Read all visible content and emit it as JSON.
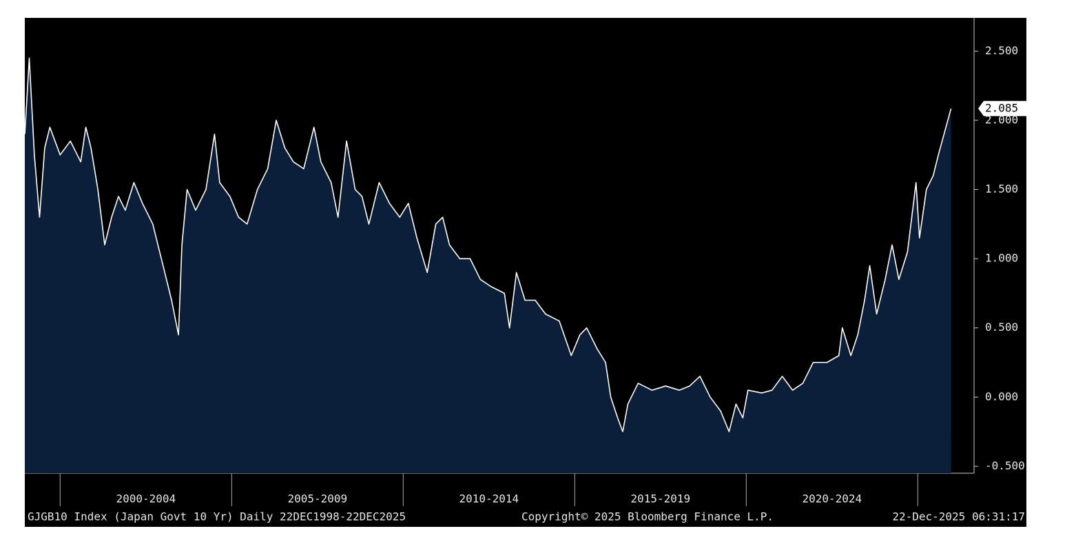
{
  "chart_data": {
    "type": "area",
    "x": [
      1998.97,
      1999.1,
      1999.25,
      1999.4,
      1999.55,
      1999.7,
      2000.0,
      2000.3,
      2000.6,
      2000.75,
      2000.9,
      2001.1,
      2001.3,
      2001.5,
      2001.7,
      2001.9,
      2002.15,
      2002.4,
      2002.7,
      2003.0,
      2003.25,
      2003.45,
      2003.55,
      2003.7,
      2003.95,
      2004.25,
      2004.5,
      2004.65,
      2004.95,
      2005.2,
      2005.45,
      2005.75,
      2006.05,
      2006.3,
      2006.55,
      2006.8,
      2007.1,
      2007.4,
      2007.6,
      2007.9,
      2008.1,
      2008.35,
      2008.6,
      2008.8,
      2009.0,
      2009.3,
      2009.6,
      2009.9,
      2010.15,
      2010.4,
      2010.7,
      2010.95,
      2011.15,
      2011.35,
      2011.65,
      2011.95,
      2012.25,
      2012.55,
      2012.95,
      2013.1,
      2013.3,
      2013.55,
      2013.85,
      2014.15,
      2014.55,
      2014.9,
      2015.15,
      2015.35,
      2015.65,
      2015.9,
      2016.05,
      2016.25,
      2016.4,
      2016.55,
      2016.85,
      2017.25,
      2017.65,
      2018.05,
      2018.35,
      2018.65,
      2018.95,
      2019.25,
      2019.5,
      2019.7,
      2019.9,
      2020.05,
      2020.45,
      2020.75,
      2021.05,
      2021.35,
      2021.65,
      2021.95,
      2022.35,
      2022.7,
      2022.8,
      2023.05,
      2023.25,
      2023.45,
      2023.6,
      2023.8,
      2024.05,
      2024.25,
      2024.45,
      2024.7,
      2024.95,
      2025.05,
      2025.25,
      2025.45,
      2025.6,
      2025.97
    ],
    "values": [
      1.9,
      2.45,
      1.75,
      1.3,
      1.8,
      1.95,
      1.75,
      1.85,
      1.7,
      1.95,
      1.8,
      1.5,
      1.1,
      1.3,
      1.45,
      1.35,
      1.55,
      1.4,
      1.25,
      0.95,
      0.7,
      0.45,
      1.1,
      1.5,
      1.35,
      1.5,
      1.9,
      1.55,
      1.45,
      1.3,
      1.25,
      1.5,
      1.65,
      2.0,
      1.8,
      1.7,
      1.65,
      1.95,
      1.7,
      1.55,
      1.3,
      1.85,
      1.5,
      1.45,
      1.25,
      1.55,
      1.4,
      1.3,
      1.4,
      1.15,
      0.9,
      1.25,
      1.3,
      1.1,
      1.0,
      1.0,
      0.85,
      0.8,
      0.75,
      0.5,
      0.9,
      0.7,
      0.7,
      0.6,
      0.55,
      0.3,
      0.45,
      0.5,
      0.35,
      0.25,
      0.0,
      -0.15,
      -0.25,
      -0.05,
      0.1,
      0.05,
      0.08,
      0.05,
      0.08,
      0.15,
      0.0,
      -0.1,
      -0.25,
      -0.05,
      -0.15,
      0.05,
      0.03,
      0.05,
      0.15,
      0.05,
      0.1,
      0.25,
      0.25,
      0.3,
      0.5,
      0.3,
      0.45,
      0.7,
      0.95,
      0.6,
      0.85,
      1.1,
      0.85,
      1.05,
      1.55,
      1.15,
      1.5,
      1.6,
      1.75,
      2.085
    ],
    "xlim": [
      1998.97,
      2026.64
    ],
    "ylim": [
      -0.55,
      2.74
    ],
    "yticks": [
      {
        "value": -0.5,
        "label": "-0.500"
      },
      {
        "value": 0,
        "label": "0.000"
      },
      {
        "value": 0.5,
        "label": "0.500"
      },
      {
        "value": 1,
        "label": "1.000"
      },
      {
        "value": 1.5,
        "label": "1.500"
      },
      {
        "value": 2,
        "label": "2.000"
      },
      {
        "value": 2.5,
        "label": "2.500"
      }
    ],
    "xticks": [
      {
        "value": 2002.5,
        "label": "2000-2004"
      },
      {
        "value": 2007.5,
        "label": "2005-2009"
      },
      {
        "value": 2012.5,
        "label": "2010-2014"
      },
      {
        "value": 2017.5,
        "label": "2015-2019"
      },
      {
        "value": 2022.5,
        "label": "2020-2024"
      }
    ],
    "last_value": {
      "value": 2.085,
      "label": "2.085"
    },
    "line_color": "#ffffff",
    "fill_color": "#0b1f3a",
    "footer_left": "GJGB10 Index (Japan Govt 10 Yr) Daily 22DEC1998-22DEC2025",
    "copyright": "Copyright© 2025 Bloomberg Finance L.P.",
    "timestamp": "22-Dec-2025 06:31:17"
  }
}
